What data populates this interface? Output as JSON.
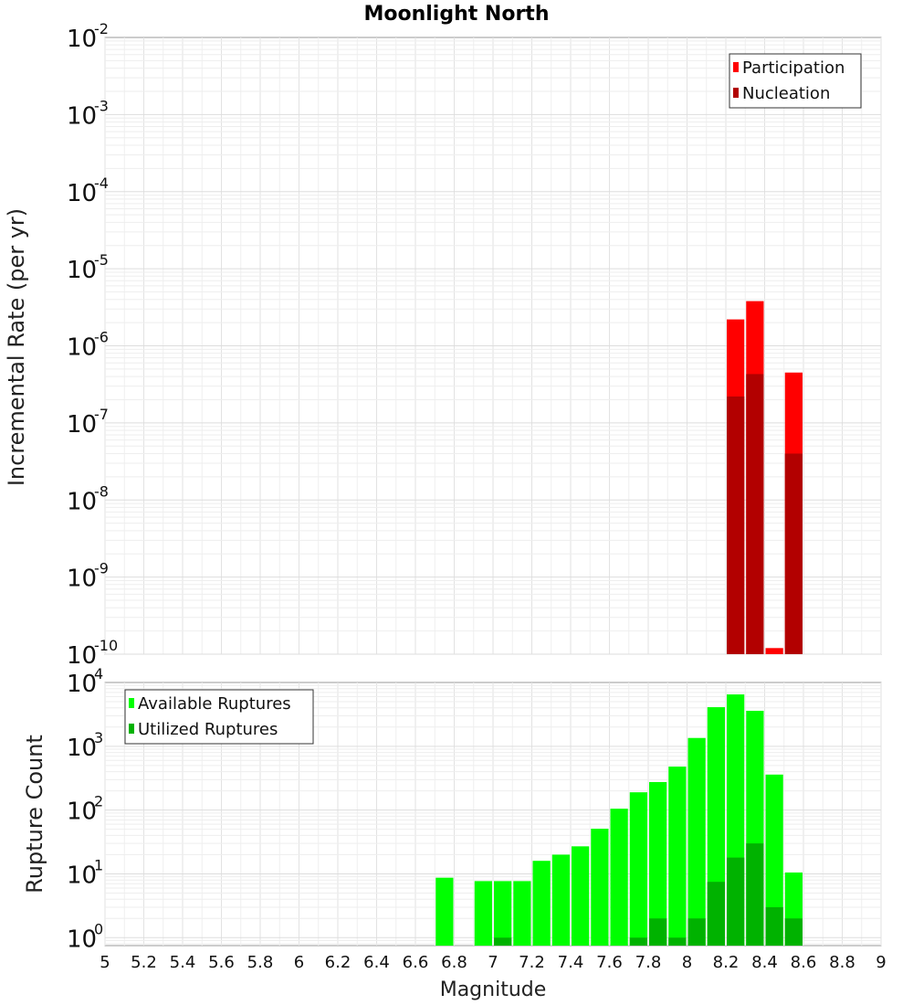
{
  "chart_data": [
    {
      "type": "bar",
      "title": "Moonlight North",
      "ylabel": "Incremental Rate (per yr)",
      "xlabel": "",
      "yscale": "log",
      "ylim": [
        1e-10,
        0.01
      ],
      "xlim": [
        5,
        9
      ],
      "bin_width": 0.1,
      "grid": true,
      "legend_position": "top-right",
      "y_ticks": [
        {
          "base": "10",
          "exp": "-10",
          "value": 1e-10
        },
        {
          "base": "10",
          "exp": "-9",
          "value": 1e-09
        },
        {
          "base": "10",
          "exp": "-8",
          "value": 1e-08
        },
        {
          "base": "10",
          "exp": "-7",
          "value": 1e-07
        },
        {
          "base": "10",
          "exp": "-6",
          "value": 1e-06
        },
        {
          "base": "10",
          "exp": "-5",
          "value": 1e-05
        },
        {
          "base": "10",
          "exp": "-4",
          "value": 0.0001
        },
        {
          "base": "10",
          "exp": "-3",
          "value": 0.001
        },
        {
          "base": "10",
          "exp": "-2",
          "value": 0.01
        }
      ],
      "series": [
        {
          "name": "Participation",
          "color": "#ff0000",
          "x": [
            8.25,
            8.35,
            8.45,
            8.55
          ],
          "values": [
            2.2e-06,
            3.8e-06,
            1.2e-10,
            4.5e-07
          ]
        },
        {
          "name": "Nucleation",
          "color": "#b20000",
          "x": [
            8.25,
            8.35,
            8.55
          ],
          "values": [
            2.2e-07,
            4.3e-07,
            4e-08
          ]
        }
      ]
    },
    {
      "type": "bar",
      "title": "",
      "ylabel": "Rupture Count",
      "xlabel": "Magnitude",
      "yscale": "log",
      "ylim": [
        0.75,
        10000
      ],
      "xlim": [
        5,
        9
      ],
      "bin_width": 0.1,
      "grid": true,
      "legend_position": "top-left",
      "x_ticks": [
        "5",
        "5.2",
        "5.4",
        "5.6",
        "5.8",
        "6",
        "6.2",
        "6.4",
        "6.6",
        "6.8",
        "7",
        "7.2",
        "7.4",
        "7.6",
        "7.8",
        "8",
        "8.2",
        "8.4",
        "8.6",
        "8.8",
        "9"
      ],
      "y_ticks": [
        {
          "base": "10",
          "exp": "0",
          "value": 1
        },
        {
          "base": "10",
          "exp": "1",
          "value": 10
        },
        {
          "base": "10",
          "exp": "2",
          "value": 100
        },
        {
          "base": "10",
          "exp": "3",
          "value": 1000
        },
        {
          "base": "10",
          "exp": "4",
          "value": 10000
        }
      ],
      "series": [
        {
          "name": "Available Ruptures",
          "color": "#00ff00",
          "x": [
            6.75,
            6.95,
            7.05,
            7.15,
            7.25,
            7.35,
            7.45,
            7.55,
            7.65,
            7.75,
            7.85,
            7.95,
            8.05,
            8.15,
            8.25,
            8.35,
            8.45,
            8.55
          ],
          "values": [
            8.7,
            7.7,
            7.7,
            7.7,
            16,
            20,
            27,
            51,
            105,
            190,
            275,
            480,
            1350,
            4100,
            6500,
            3600,
            360,
            10.5
          ]
        },
        {
          "name": "Utilized Ruptures",
          "color": "#00b200",
          "x": [
            7.05,
            7.75,
            7.85,
            7.95,
            8.05,
            8.15,
            8.25,
            8.35,
            8.45,
            8.55
          ],
          "values": [
            1,
            1,
            2,
            1,
            2,
            7.5,
            18,
            30,
            3,
            2
          ]
        }
      ]
    }
  ]
}
